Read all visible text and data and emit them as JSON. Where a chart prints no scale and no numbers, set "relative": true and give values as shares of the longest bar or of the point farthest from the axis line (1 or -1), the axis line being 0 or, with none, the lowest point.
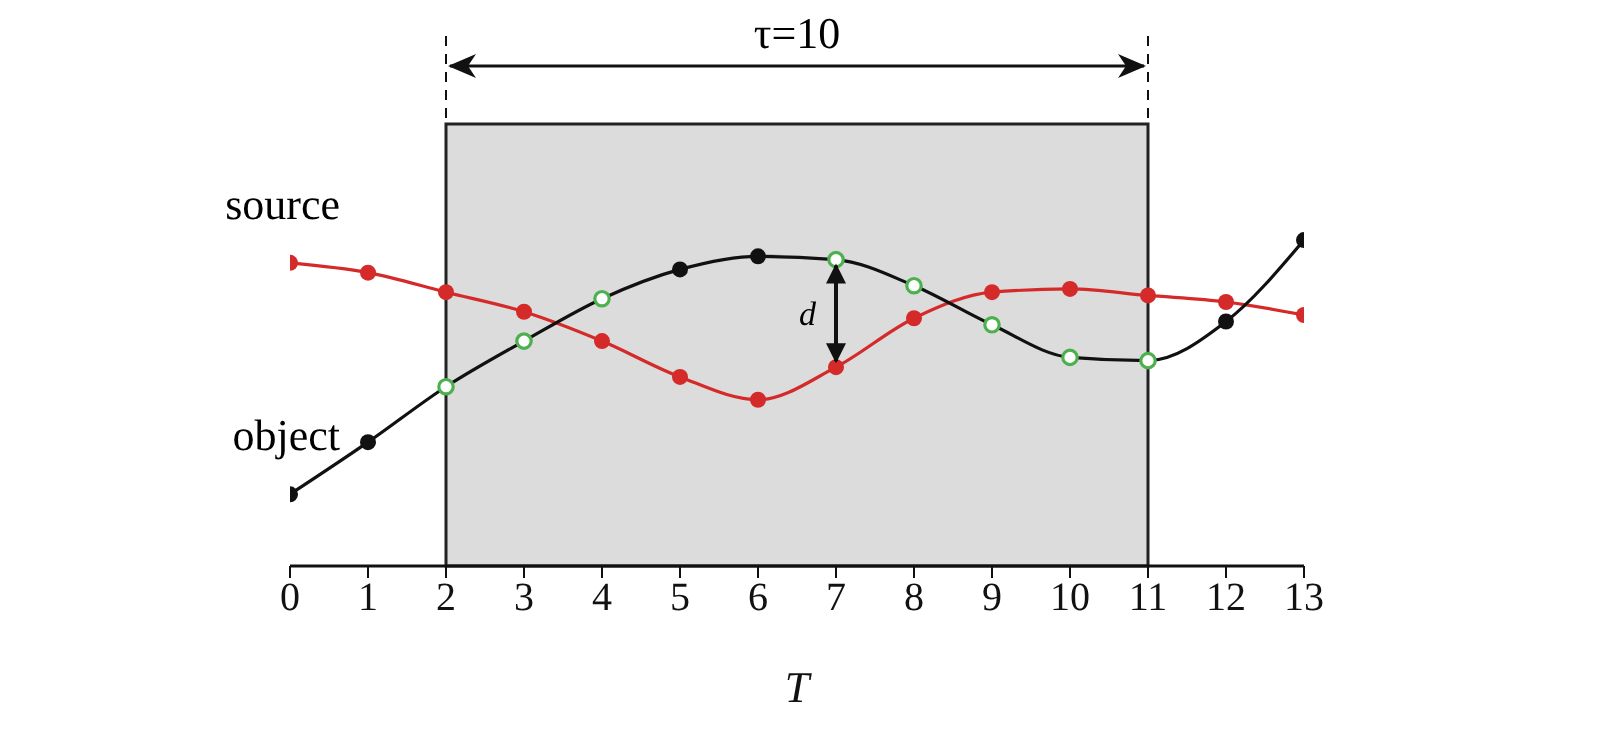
{
  "chart_data": {
    "type": "line",
    "relative": true,
    "xlabel": "T",
    "x": [
      0,
      1,
      2,
      3,
      4,
      5,
      6,
      7,
      8,
      9,
      10,
      11,
      12,
      13
    ],
    "xlim": [
      0,
      13
    ],
    "xticks": [
      0,
      1,
      2,
      3,
      4,
      5,
      6,
      7,
      8,
      9,
      10,
      11,
      12,
      13
    ],
    "grid": false,
    "marker": "circle",
    "line_style": "solid",
    "series": [
      {
        "name": "source",
        "color": "#d42a2a",
        "values": [
          0.93,
          0.9,
          0.84,
          0.78,
          0.69,
          0.58,
          0.51,
          0.61,
          0.76,
          0.84,
          0.85,
          0.83,
          0.81,
          0.77
        ]
      },
      {
        "name": "object",
        "color": "#111111",
        "colors": [
          "#111111",
          "#111111",
          "#4cb04c",
          "#4cb04c",
          "#4cb04c",
          "#111111",
          "#111111",
          "#4cb04c",
          "#4cb04c",
          "#4cb04c",
          "#4cb04c",
          "#4cb04c",
          "#111111",
          "#111111"
        ],
        "values": [
          0.22,
          0.38,
          0.55,
          0.69,
          0.82,
          0.91,
          0.95,
          0.94,
          0.86,
          0.74,
          0.64,
          0.63,
          0.75,
          1
        ]
      }
    ],
    "bands": [
      {
        "axis": "x",
        "from": 2,
        "to": 11,
        "label": "τ=10",
        "color": "#dcdcdc"
      }
    ],
    "annotations": [
      "d"
    ]
  }
}
